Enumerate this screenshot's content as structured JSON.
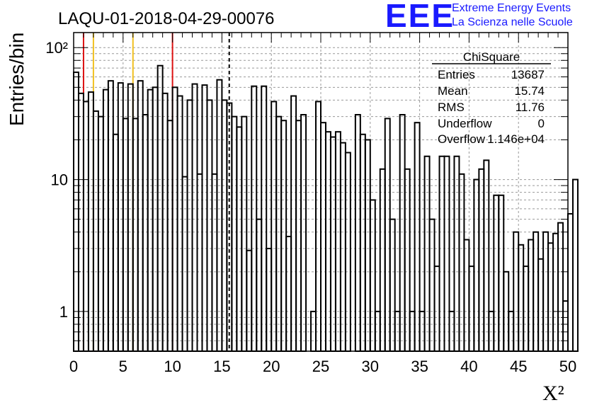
{
  "header": {
    "run_title": "LAQU-01-2018-04-29-00076",
    "logo_text": "EEE",
    "logo_line1": "Extreme Energy Events",
    "logo_line2": "La Scienza nelle Scuole",
    "logo_color": "#1a1aff"
  },
  "stats": {
    "title": "ChiSquare",
    "rows": [
      {
        "label": "Entries",
        "value": "13687"
      },
      {
        "label": "Mean",
        "value": "15.74"
      },
      {
        "label": "RMS",
        "value": "11.76"
      },
      {
        "label": "Underflow",
        "value": "0"
      },
      {
        "label": "Overflow",
        "value": "1.146e+04"
      }
    ]
  },
  "chart_data": {
    "type": "bar",
    "histogram": "step",
    "xlabel": "X²",
    "ylabel": "Entries/bin",
    "xlim": [
      0,
      50
    ],
    "ylim": [
      0.5,
      130
    ],
    "yscale": "log",
    "grid": true,
    "bin_width": 0.5,
    "xticks": [
      0,
      5,
      10,
      15,
      20,
      25,
      30,
      35,
      40,
      45,
      50
    ],
    "yticks": [
      {
        "value": 1,
        "label": "1"
      },
      {
        "value": 10,
        "label": "10"
      },
      {
        "value": 100,
        "label": "10²"
      }
    ],
    "vlines": [
      {
        "x": 1,
        "color": "#dd1111",
        "style": "solid"
      },
      {
        "x": 2,
        "color": "#f0c020",
        "style": "solid"
      },
      {
        "x": 6,
        "color": "#f0c020",
        "style": "solid"
      },
      {
        "x": 10,
        "color": "#dd1111",
        "style": "solid"
      },
      {
        "x": 15.74,
        "color": "#000000",
        "style": "dashed"
      }
    ],
    "values": [
      65,
      45,
      39,
      46,
      33,
      30,
      48,
      56,
      22,
      54,
      29,
      53,
      29,
      56,
      31,
      48,
      50,
      73,
      45,
      28,
      50,
      43,
      10.5,
      40,
      53,
      11,
      52,
      40,
      11,
      57,
      40,
      38,
      30,
      25,
      30,
      2.9,
      51,
      5,
      51,
      3,
      39,
      30,
      28,
      3.7,
      43,
      28,
      31,
      0.35,
      1,
      39,
      27,
      23,
      21,
      23,
      19,
      16,
      0.3,
      31,
      22,
      20,
      7,
      1,
      12,
      29,
      5,
      1,
      31,
      12,
      1,
      27,
      1,
      15,
      5,
      2.2,
      15,
      15,
      1,
      15,
      11,
      3.5,
      2.2,
      10,
      12,
      14,
      1,
      7.6,
      7.6,
      2,
      1,
      4,
      3.2,
      2.2,
      3.5,
      4,
      2.5,
      4,
      3.3,
      3.9,
      4.7,
      1.2,
      5.5,
      10
    ]
  }
}
